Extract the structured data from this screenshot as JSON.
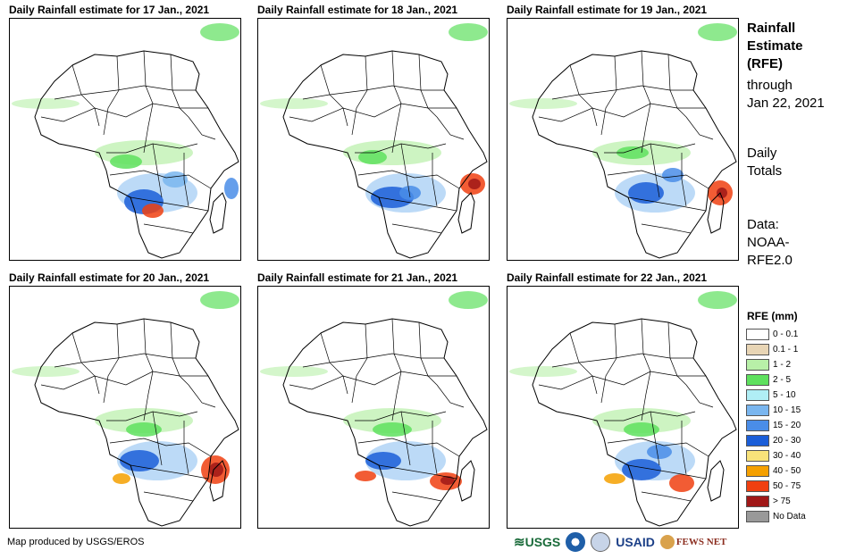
{
  "panels": [
    {
      "title": "Daily Rainfall estimate for 17 Jan., 2021"
    },
    {
      "title": "Daily Rainfall estimate for 18 Jan., 2021"
    },
    {
      "title": "Daily Rainfall estimate for 19 Jan., 2021"
    },
    {
      "title": "Daily Rainfall estimate for 20 Jan., 2021"
    },
    {
      "title": "Daily Rainfall estimate for 21 Jan., 2021"
    },
    {
      "title": "Daily Rainfall estimate for 22 Jan., 2021"
    }
  ],
  "sidebar": {
    "title_line1": "Rainfall",
    "title_line2": "Estimate",
    "title_line3": "(RFE)",
    "through": "through",
    "date": "Jan 22, 2021",
    "totals_line1": "Daily",
    "totals_line2": "Totals",
    "data_line1": "Data:",
    "data_line2": "NOAA-",
    "data_line3": "RFE2.0"
  },
  "legend": {
    "title": "RFE (mm)",
    "items": [
      {
        "label": "0 - 0.1",
        "color": "#ffffff"
      },
      {
        "label": "0.1 - 1",
        "color": "#e8d5b5"
      },
      {
        "label": "1 - 2",
        "color": "#b8f0a8"
      },
      {
        "label": "2 - 5",
        "color": "#5ee05e"
      },
      {
        "label": "5 - 10",
        "color": "#b0eef5"
      },
      {
        "label": "10 - 15",
        "color": "#7ab6ef"
      },
      {
        "label": "15 - 20",
        "color": "#4a8de8"
      },
      {
        "label": "20 - 30",
        "color": "#1b5ed8"
      },
      {
        "label": "30 - 40",
        "color": "#f8e27a"
      },
      {
        "label": "40 - 50",
        "color": "#f5a000"
      },
      {
        "label": "50 - 75",
        "color": "#f04010"
      },
      {
        "label": "> 75",
        "color": "#a01818"
      },
      {
        "label": "No Data",
        "color": "#999999"
      }
    ]
  },
  "credit": "Map produced by USGS/EROS",
  "logos": {
    "usgs": "USGS",
    "usaid": "USAID",
    "fews": "FEWS NET"
  }
}
